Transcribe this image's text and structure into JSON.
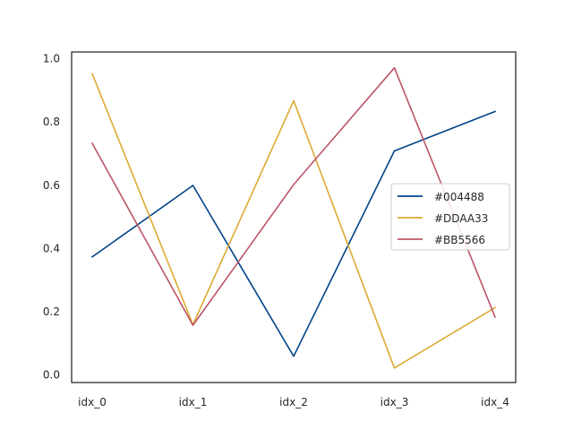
{
  "chart_data": {
    "type": "line",
    "categories": [
      "idx_0",
      "idx_1",
      "idx_2",
      "idx_3",
      "idx_4"
    ],
    "ylim": [
      -0.025,
      1.02
    ],
    "yticks": [
      "0.0",
      "0.2",
      "0.4",
      "0.6",
      "0.8",
      "1.0"
    ],
    "ytick_values": [
      0.0,
      0.2,
      0.4,
      0.6,
      0.8,
      1.0
    ],
    "title": "",
    "xlabel": "",
    "ylabel": "",
    "legend_position": "center-right",
    "series": [
      {
        "name": "#004488",
        "color": "#004488",
        "values": [
          0.372,
          0.598,
          0.058,
          0.707,
          0.832
        ]
      },
      {
        "name": "#DDAA33",
        "color": "#DDAA33",
        "values": [
          0.951,
          0.158,
          0.866,
          0.021,
          0.212
        ]
      },
      {
        "name": "#BB5566",
        "color": "#BB5566",
        "values": [
          0.731,
          0.156,
          0.601,
          0.97,
          0.182
        ]
      }
    ]
  }
}
